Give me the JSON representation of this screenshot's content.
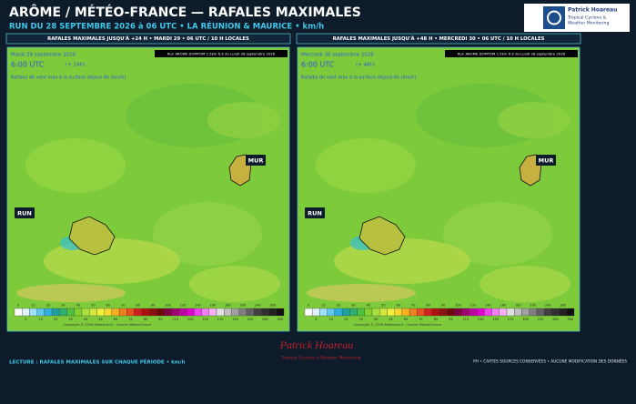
{
  "header": {
    "title": "ARÔME / MÉTÉO-FRANCE — RAFALES MAXIMALES",
    "subtitle": "RUN DU 28 SEPTEMBRE 2026 à 06 UTC • LA RÉUNION & MAURICE • km/h"
  },
  "logo": {
    "name": "Patrick Hoareau",
    "line1": "Tropical Cyclone &",
    "line2": "Weather Monitoring"
  },
  "panels": [
    {
      "header": "RAFALES MAXIMALES JUSQU'À +24 H • MARDI 29 • 06 UTC / 10 H LOCALES",
      "run_label": "Run AROME DOMTOM 2.5km 6 Z du Lundi 28 septembre 2026",
      "date": "Mardi 29 septembre 2026",
      "time": "6:00 UTC",
      "lead": "(+ 24h)",
      "caption": "Rafales de vent max à la surface depuis 6h (km/h)",
      "labels": [
        "MUR",
        "RUN"
      ],
      "copyright": "Copyright © 2026 Meteociel.fr - Source Meteo-France"
    },
    {
      "header": "RAFALES MAXIMALES JUSQU'À +48 H • MERCREDI 30 • 06 UTC / 10 H LOCALES",
      "run_label": "Run AROME DOMTOM 2.5km 6 Z du Lundi 28 septembre 2026",
      "date": "Mercredi 30 septembre 2026",
      "time": "6:00 UTC",
      "lead": "(+ 48h)",
      "caption": "Rafales de vent max à la surface depuis 6h (km/h)",
      "labels": [
        "MUR",
        "RUN"
      ],
      "copyright": "Copyright © 2026 Meteociel.fr - Source Meteo-France"
    }
  ],
  "colorbar": {
    "values": [
      0,
      5,
      10,
      15,
      20,
      25,
      30,
      35,
      40,
      45,
      50,
      55,
      60,
      65,
      70,
      75,
      80,
      85,
      90,
      95,
      100,
      110,
      120,
      130,
      140,
      150,
      160,
      170,
      180,
      190,
      200,
      220,
      240,
      260,
      280,
      300
    ],
    "colors": [
      "#ffffff",
      "#e0f4ff",
      "#a0e0ff",
      "#60c8f0",
      "#30b0e0",
      "#20a0a0",
      "#30b070",
      "#50c040",
      "#80d030",
      "#a8e040",
      "#d0e840",
      "#f0f040",
      "#f8d830",
      "#f8b020",
      "#f08020",
      "#e85020",
      "#d02020",
      "#b01010",
      "#901010",
      "#700808",
      "#800040",
      "#a00070",
      "#c000a0",
      "#e000d0",
      "#f040f0",
      "#f080f8",
      "#f8b0f8",
      "#e0e0e0",
      "#c0c0c0",
      "#a0a0a0",
      "#808080",
      "#606060",
      "#404040",
      "#303030",
      "#202020",
      "#101010"
    ]
  },
  "footer": {
    "left": "LECTURE : RAFALES MAXIMALES SUR CHAQUE PÉRIODE • km/h",
    "right": "PH • CARTES SOURCES CONSERVÉES • AUCUNE MODIFICATION DES DONNÉES",
    "signature": "Patrick Hoareau",
    "signature_sub": "Tropical Cyclone & Weather Monitoring"
  }
}
